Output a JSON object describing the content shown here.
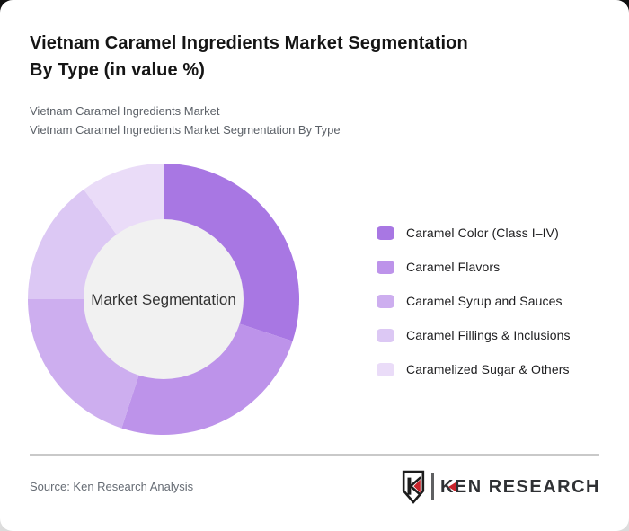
{
  "header": {
    "title_line1": "Vietnam Caramel Ingredients Market Segmentation",
    "title_line2": "By Type (in value %)",
    "subtitle1": "Vietnam Caramel Ingredients Market",
    "subtitle2": "Vietnam Caramel Ingredients Market Segmentation By Type"
  },
  "chart_data": {
    "type": "pie",
    "donut": true,
    "title": "Vietnam Caramel Ingredients Market Segmentation By Type (in value %)",
    "center_label": "Market Segmentation",
    "categories": [
      "Caramel Color (Class I–IV)",
      "Caramel Flavors",
      "Caramel Syrup and Sauces",
      "Caramel Fillings & Inclusions",
      "Caramelized Sugar & Others"
    ],
    "values": [
      30,
      25,
      20,
      15,
      10
    ],
    "colors": [
      "#a877e3",
      "#bd93ea",
      "#cdaeef",
      "#dcc8f4",
      "#eadcf8"
    ],
    "inner_circle_color": "#f1f1f1",
    "start_angle_deg": 0,
    "clockwise": true,
    "legend_position": "right",
    "value_labels_shown": false
  },
  "footer": {
    "source": "Source: Ken Research Analysis",
    "logo_text": "KEN RESEARCH",
    "brand_red": "#c8232b"
  }
}
